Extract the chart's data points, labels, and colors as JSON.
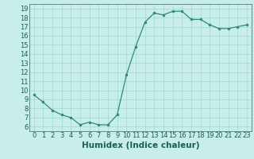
{
  "x": [
    0,
    1,
    2,
    3,
    4,
    5,
    6,
    7,
    8,
    9,
    10,
    11,
    12,
    13,
    14,
    15,
    16,
    17,
    18,
    19,
    20,
    21,
    22,
    23
  ],
  "y": [
    9.5,
    8.7,
    7.8,
    7.3,
    7.0,
    6.2,
    6.5,
    6.2,
    6.2,
    7.3,
    11.7,
    14.8,
    17.5,
    18.5,
    18.3,
    18.7,
    18.7,
    17.8,
    17.8,
    17.2,
    16.8,
    16.8,
    17.0,
    17.2
  ],
  "xlabel": "Humidex (Indice chaleur)",
  "xlim": [
    -0.5,
    23.5
  ],
  "ylim": [
    5.5,
    19.5
  ],
  "yticks": [
    6,
    7,
    8,
    9,
    10,
    11,
    12,
    13,
    14,
    15,
    16,
    17,
    18,
    19
  ],
  "xticks": [
    0,
    1,
    2,
    3,
    4,
    5,
    6,
    7,
    8,
    9,
    10,
    11,
    12,
    13,
    14,
    15,
    16,
    17,
    18,
    19,
    20,
    21,
    22,
    23
  ],
  "line_color": "#2e8b72",
  "marker_color": "#2e8b72",
  "bg_color": "#c8eeea",
  "grid_color": "#a0d8d0",
  "xlabel_fontsize": 7.5,
  "tick_fontsize": 6.0
}
